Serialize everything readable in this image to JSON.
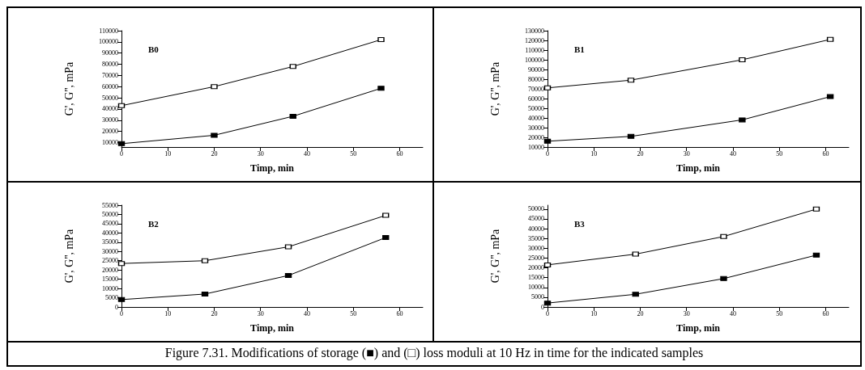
{
  "chart_data": [
    {
      "type": "line",
      "title": "B0",
      "xlabel": "Timp, min",
      "ylabel": "G', G'', mPa",
      "marker": "square",
      "line_style": "solid",
      "grid": false,
      "xlim": [
        0,
        65
      ],
      "xticks": [
        0,
        10,
        20,
        30,
        40,
        50,
        60
      ],
      "ylim": [
        6000,
        110000
      ],
      "yticks": [
        10000,
        20000,
        30000,
        40000,
        50000,
        60000,
        70000,
        80000,
        90000,
        100000,
        110000
      ],
      "annotations": [
        "Figure 7.31. Modifications of storage (■) and (□) loss moduli at 10 Hz in time for the indicated samples"
      ],
      "series": [
        {
          "color": "#000000",
          "x": [
            0,
            20,
            37,
            56
          ],
          "values": [
            9000,
            16500,
            33500,
            58500
          ]
        },
        {
          "color": "#000000",
          "x": [
            0,
            20,
            37,
            56
          ],
          "values": [
            43000,
            60000,
            78000,
            102000
          ]
        }
      ]
    },
    {
      "type": "line",
      "title": "B1",
      "xlabel": "Timp, min",
      "ylabel": "G', G'', mPa",
      "marker": "square",
      "line_style": "solid",
      "grid": false,
      "xlim": [
        0,
        65
      ],
      "xticks": [
        0,
        10,
        20,
        30,
        40,
        50,
        60
      ],
      "ylim": [
        10000,
        130000
      ],
      "yticks": [
        10000,
        20000,
        30000,
        40000,
        50000,
        60000,
        70000,
        80000,
        90000,
        100000,
        110000,
        120000,
        130000
      ],
      "series": [
        {
          "color": "#000000",
          "x": [
            0,
            18,
            42,
            61
          ],
          "values": [
            16000,
            21000,
            38000,
            62000
          ]
        },
        {
          "color": "#000000",
          "x": [
            0,
            18,
            42,
            61
          ],
          "values": [
            71000,
            79000,
            100000,
            121000
          ]
        }
      ]
    },
    {
      "type": "line",
      "title": "B2",
      "xlabel": "Timp, min",
      "ylabel": "G', G'', mPa",
      "marker": "square",
      "line_style": "solid",
      "grid": false,
      "xlim": [
        0,
        65
      ],
      "xticks": [
        0,
        10,
        20,
        30,
        40,
        50,
        60
      ],
      "ylim": [
        0,
        55000
      ],
      "yticks": [
        0,
        5000,
        10000,
        15000,
        20000,
        25000,
        30000,
        35000,
        40000,
        45000,
        50000,
        55000
      ],
      "series": [
        {
          "color": "#000000",
          "x": [
            0,
            18,
            36,
            57
          ],
          "values": [
            4000,
            7000,
            17000,
            37500
          ]
        },
        {
          "color": "#000000",
          "x": [
            0,
            18,
            36,
            57
          ],
          "values": [
            23500,
            25000,
            32500,
            49500
          ]
        }
      ]
    },
    {
      "type": "line",
      "title": "B3",
      "xlabel": "Timp, min",
      "ylabel": "G', G'', mPa",
      "marker": "square",
      "line_style": "solid",
      "grid": false,
      "xlim": [
        0,
        65
      ],
      "xticks": [
        0,
        10,
        20,
        30,
        40,
        50,
        60
      ],
      "ylim": [
        0,
        52000
      ],
      "yticks": [
        0,
        5000,
        10000,
        15000,
        20000,
        25000,
        30000,
        35000,
        40000,
        45000,
        50000
      ],
      "series": [
        {
          "color": "#000000",
          "x": [
            0,
            19,
            38,
            58
          ],
          "values": [
            2000,
            6500,
            14500,
            26500
          ]
        },
        {
          "color": "#000000",
          "x": [
            0,
            19,
            38,
            58
          ],
          "values": [
            21500,
            27000,
            36000,
            50000
          ]
        }
      ]
    }
  ]
}
